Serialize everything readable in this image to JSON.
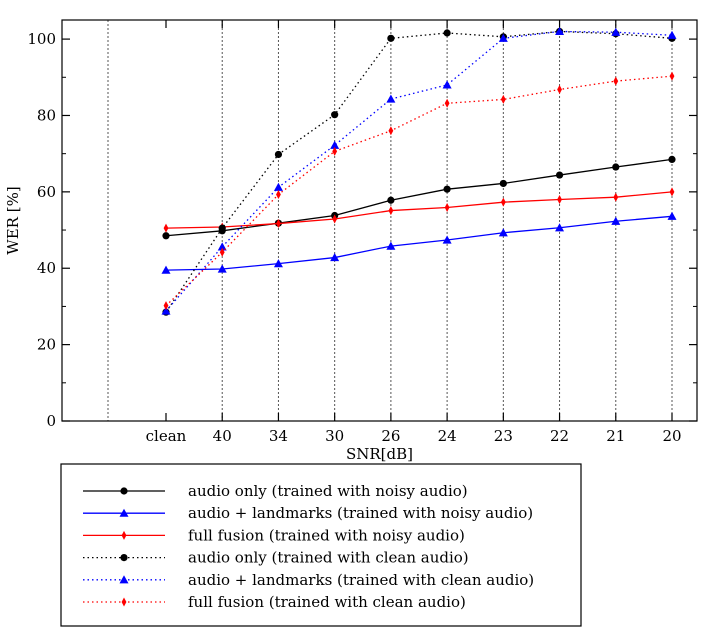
{
  "chart_data": {
    "type": "line",
    "title": "",
    "xlabel": "SNR[dB]",
    "ylabel": "WER [%]",
    "categories": [
      "clean",
      "40",
      "34",
      "30",
      "26",
      "24",
      "23",
      "22",
      "21",
      "20"
    ],
    "ylim": [
      0,
      105
    ],
    "yticks": [
      0,
      20,
      40,
      60,
      80,
      100
    ],
    "grid": "vertical dotted",
    "legend_position": "bottom-center",
    "series": [
      {
        "name": "audio only (trained with noisy audio)",
        "color": "#000000",
        "style": "solid",
        "marker": "circle",
        "values": [
          48.5,
          49.8,
          51.8,
          53.8,
          57.8,
          60.7,
          62.2,
          64.4,
          66.5,
          68.5
        ]
      },
      {
        "name": "audio + landmarks (trained with noisy audio)",
        "color": "#0000ff",
        "style": "solid",
        "marker": "triangle",
        "values": [
          39.5,
          39.8,
          41.2,
          42.8,
          45.8,
          47.4,
          49.3,
          50.6,
          52.3,
          53.6
        ]
      },
      {
        "name": "full fusion (trained with noisy audio)",
        "color": "#ff0000",
        "style": "solid",
        "marker": "diamond",
        "values": [
          50.5,
          50.8,
          51.7,
          52.9,
          55.1,
          55.9,
          57.3,
          58.0,
          58.6,
          60.0
        ]
      },
      {
        "name": "audio only (trained with clean audio)",
        "color": "#000000",
        "style": "dotted",
        "marker": "circle",
        "values": [
          28.5,
          50.5,
          69.8,
          80.2,
          100.2,
          101.6,
          100.6,
          102.0,
          101.4,
          100.2
        ]
      },
      {
        "name": "audio + landmarks (trained with clean audio)",
        "color": "#0000ff",
        "style": "dotted",
        "marker": "triangle",
        "values": [
          28.8,
          45.6,
          61.2,
          72.2,
          84.3,
          88.0,
          100.2,
          102.0,
          101.8,
          101.0
        ]
      },
      {
        "name": "full fusion (trained with clean audio)",
        "color": "#ff0000",
        "style": "dotted",
        "marker": "diamond",
        "values": [
          30.2,
          44.2,
          59.3,
          70.6,
          76.0,
          83.2,
          84.2,
          86.8,
          89.0,
          90.3
        ]
      }
    ]
  }
}
